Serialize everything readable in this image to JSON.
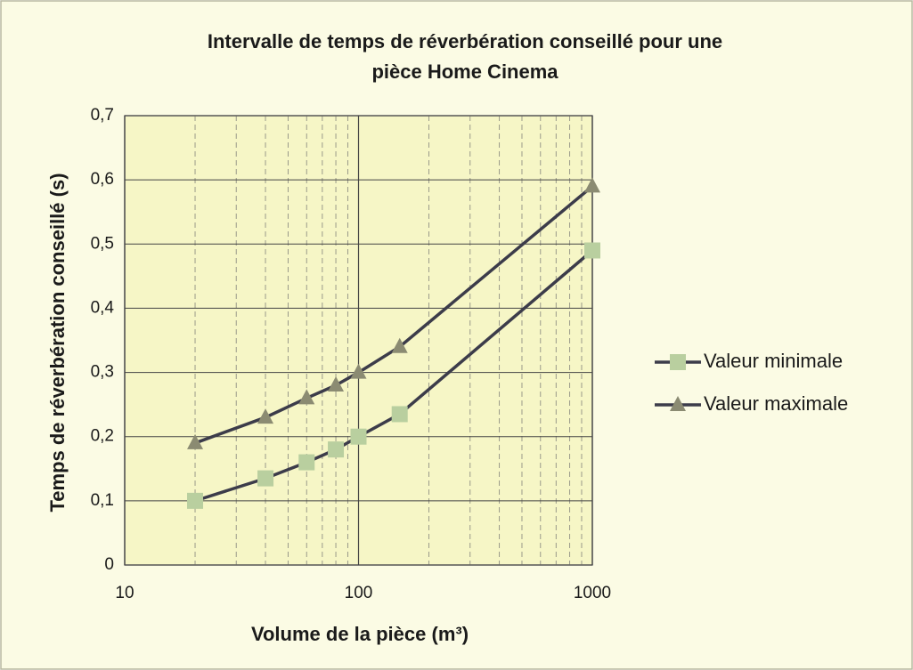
{
  "chart_data": {
    "type": "line",
    "title": [
      "Intervalle de temps de réverbération conseillé pour une",
      "pièce Home Cinema"
    ],
    "xlabel": "Volume de la pièce (m³)",
    "ylabel": "Temps de réverbération conseillé (s)",
    "x": [
      20,
      40,
      60,
      80,
      100,
      150,
      1000
    ],
    "series": [
      {
        "name": "Valeur minimale",
        "color": "#3c3c4a",
        "marker": "square",
        "marker_color": "#b9cf9f",
        "values": [
          0.1,
          0.135,
          0.16,
          0.18,
          0.2,
          0.235,
          0.49
        ]
      },
      {
        "name": "Valeur maximale",
        "color": "#3c3c4a",
        "marker": "triangle",
        "marker_color": "#8b8b72",
        "values": [
          0.19,
          0.23,
          0.26,
          0.28,
          0.3,
          0.34,
          0.59
        ]
      }
    ],
    "xlim": [
      10,
      1000
    ],
    "xticks": [
      10,
      100,
      1000
    ],
    "xscale": "log",
    "ylim": [
      0,
      0.7
    ],
    "yticks": [
      0,
      {
        "value": 0.1,
        "label": "0,1"
      },
      {
        "value": 0.2,
        "label": "0,2"
      },
      {
        "value": 0.3,
        "label": "0,3"
      },
      {
        "value": 0.4,
        "label": "0,4"
      },
      {
        "value": 0.5,
        "label": "0,5"
      },
      {
        "value": 0.6,
        "label": "0,6"
      },
      {
        "value": 0.7,
        "label": "0,7"
      }
    ],
    "grid": true,
    "minor_grid": true,
    "legend": "right"
  }
}
